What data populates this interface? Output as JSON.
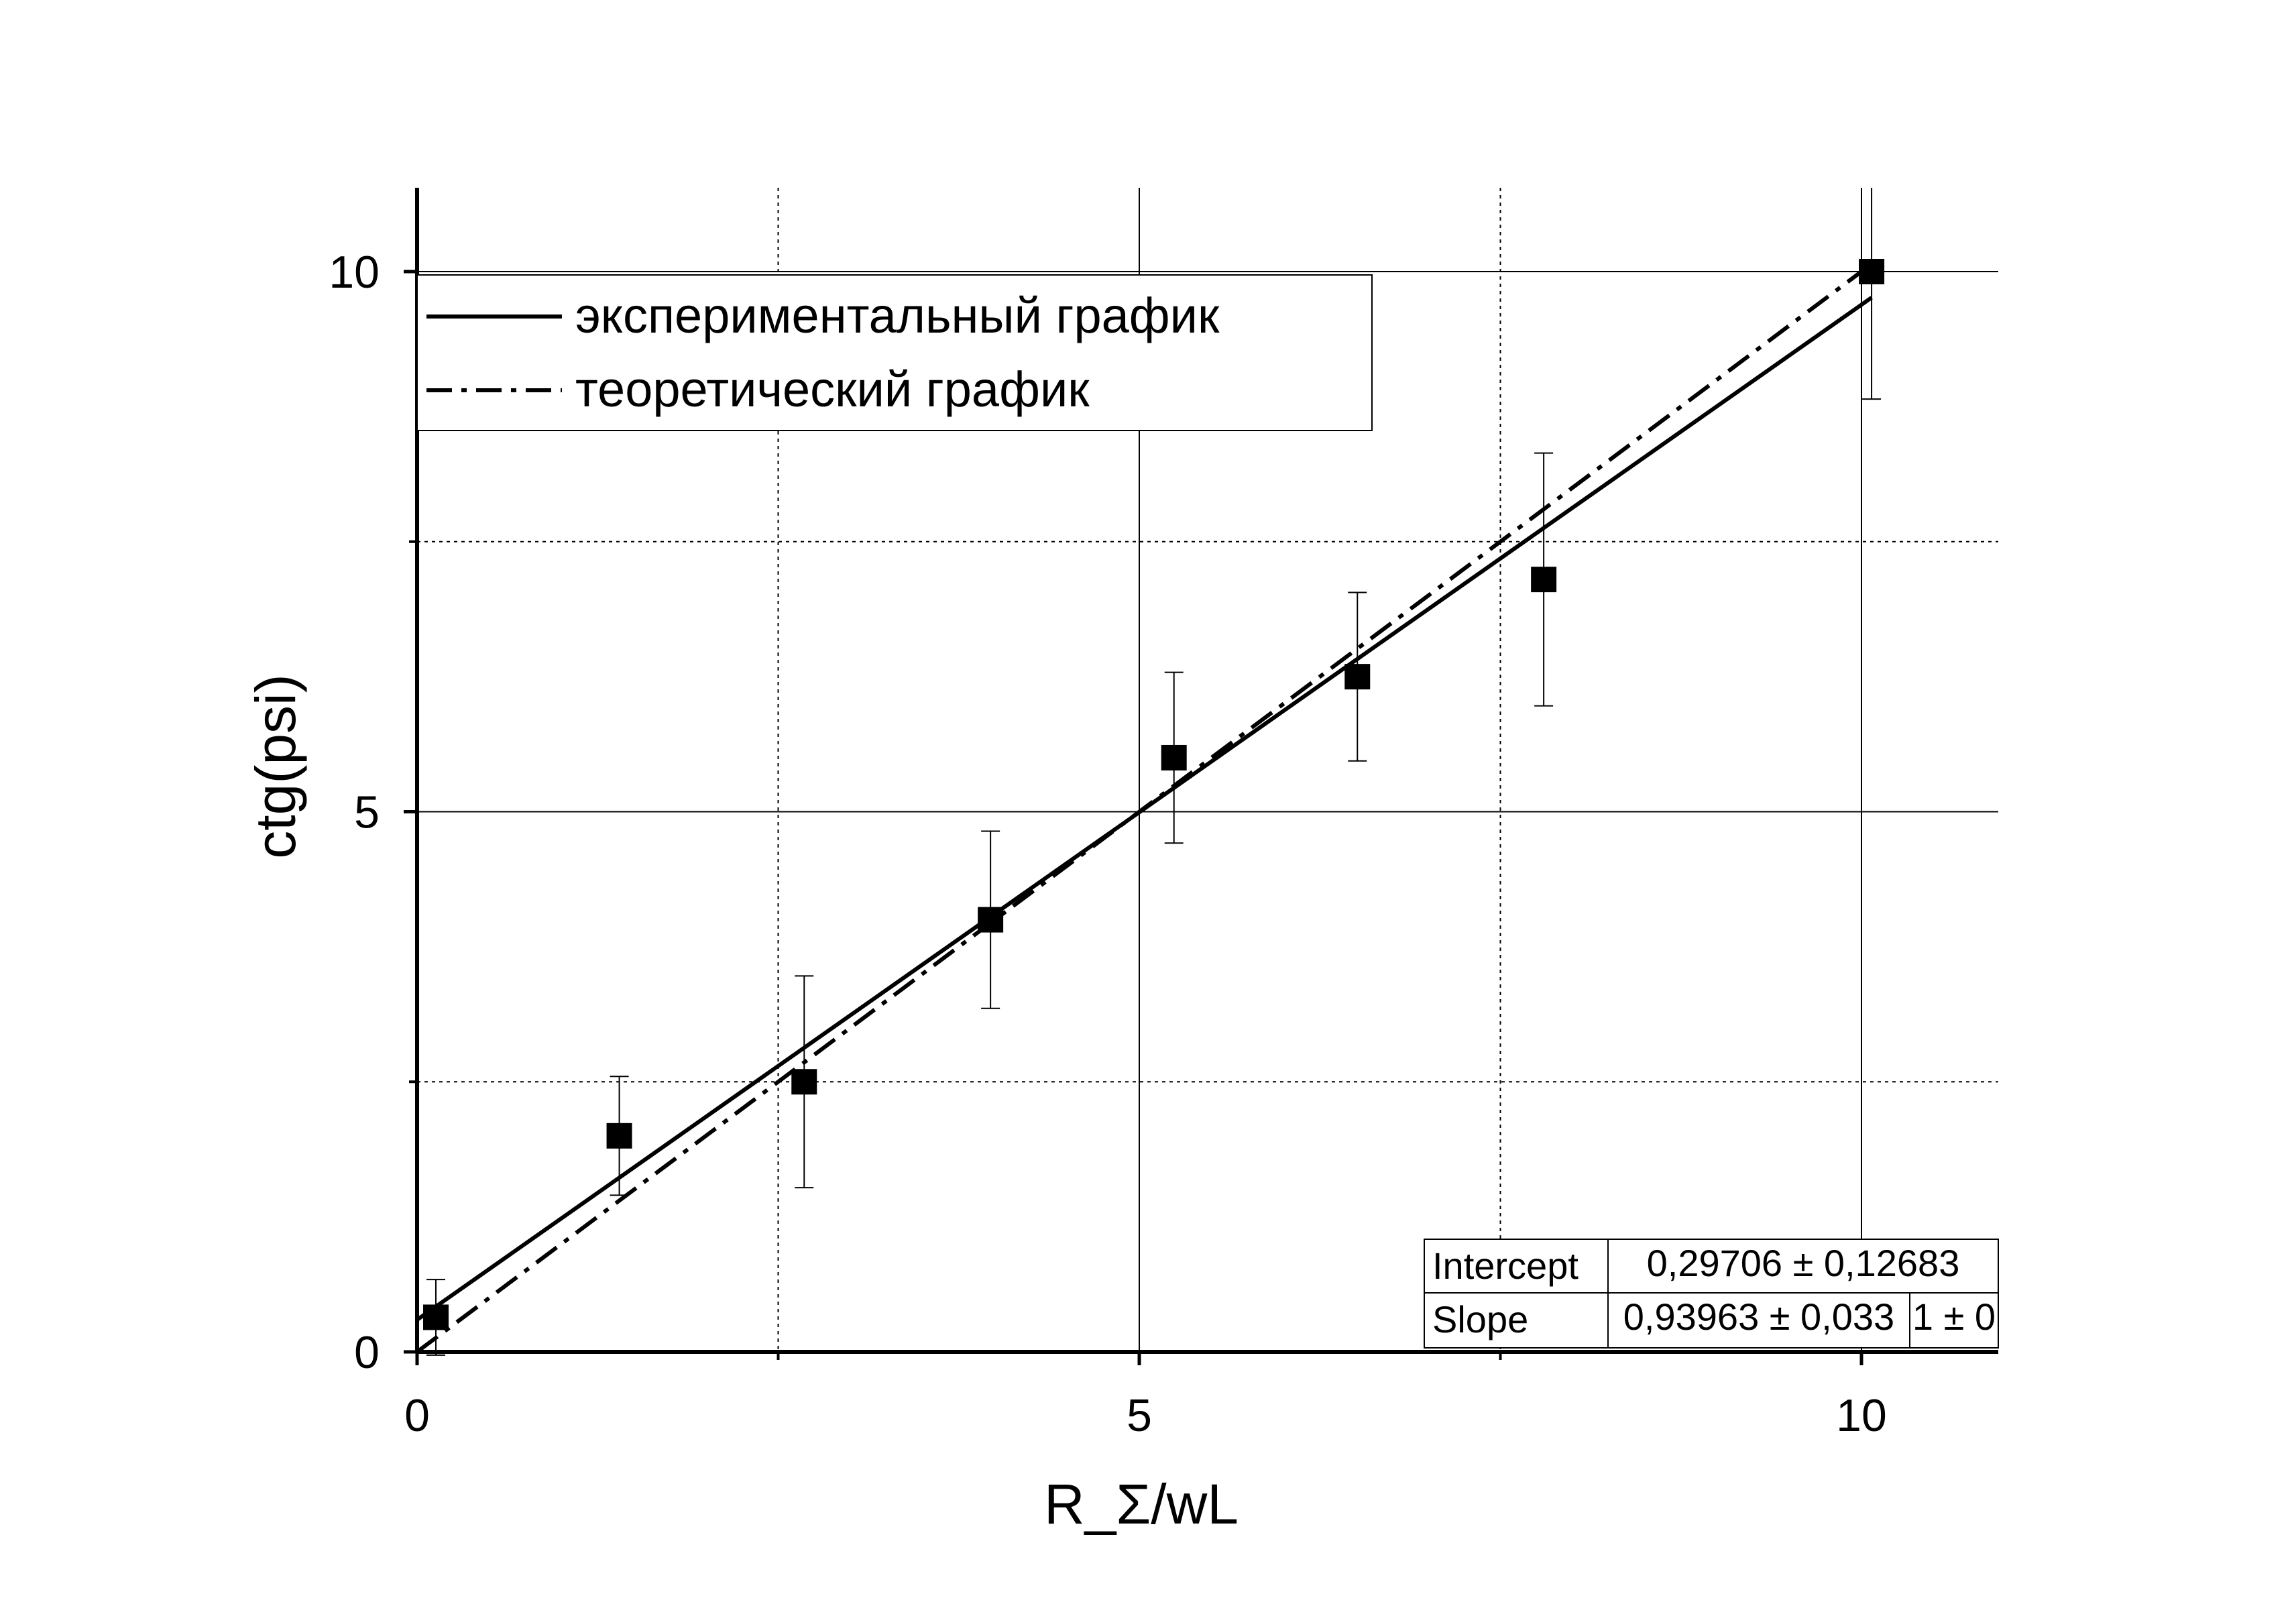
{
  "chart_data": {
    "type": "scatter",
    "xlabel": "R_Σ/wL",
    "ylabel": "ctg(psi)",
    "xlim": [
      0,
      11
    ],
    "ylim": [
      0,
      10.8
    ],
    "x_ticks": [
      {
        "value": 0,
        "label": "0"
      },
      {
        "value": 5,
        "label": "5"
      },
      {
        "value": 10,
        "label": "10"
      }
    ],
    "y_ticks": [
      {
        "value": 0,
        "label": "0"
      },
      {
        "value": 5,
        "label": "5"
      },
      {
        "value": 10,
        "label": "10"
      }
    ],
    "grid": {
      "major": [
        0,
        5,
        10
      ],
      "minor": [
        2.5,
        7.5
      ],
      "major_style": "solid",
      "minor_style": "dotted"
    },
    "points": [
      {
        "x": 0.13,
        "y": 0.32,
        "err": 0.35
      },
      {
        "x": 1.4,
        "y": 2.0,
        "err": 0.55
      },
      {
        "x": 2.68,
        "y": 2.5,
        "err": 0.98
      },
      {
        "x": 3.97,
        "y": 4.0,
        "err": 0.82
      },
      {
        "x": 5.24,
        "y": 5.5,
        "err": 0.79
      },
      {
        "x": 6.51,
        "y": 6.25,
        "err": 0.78
      },
      {
        "x": 7.8,
        "y": 7.15,
        "err": 1.17
      },
      {
        "x": 10.07,
        "y": 10.0,
        "err": 1.18
      }
    ],
    "series": [
      {
        "name": "экспериментальный график",
        "style": "solid",
        "intercept": 0.29706,
        "slope": 0.93963,
        "x_range": [
          0,
          10.07
        ]
      },
      {
        "name": "теоретический график",
        "style": "dash-dot",
        "intercept": 0,
        "slope": 1,
        "x_range": [
          0,
          10.07
        ]
      }
    ],
    "legend": {
      "position": "top-left"
    },
    "fit_table": {
      "rows": [
        {
          "label": "Intercept",
          "cells": [
            "0,29706 ± 0,12683"
          ]
        },
        {
          "label": "Slope",
          "cells": [
            "0,93963 ± 0,033",
            "1 ± 0"
          ]
        }
      ]
    },
    "colors": {
      "ink": "#000000",
      "background": "#ffffff",
      "grid": "#000000"
    }
  }
}
